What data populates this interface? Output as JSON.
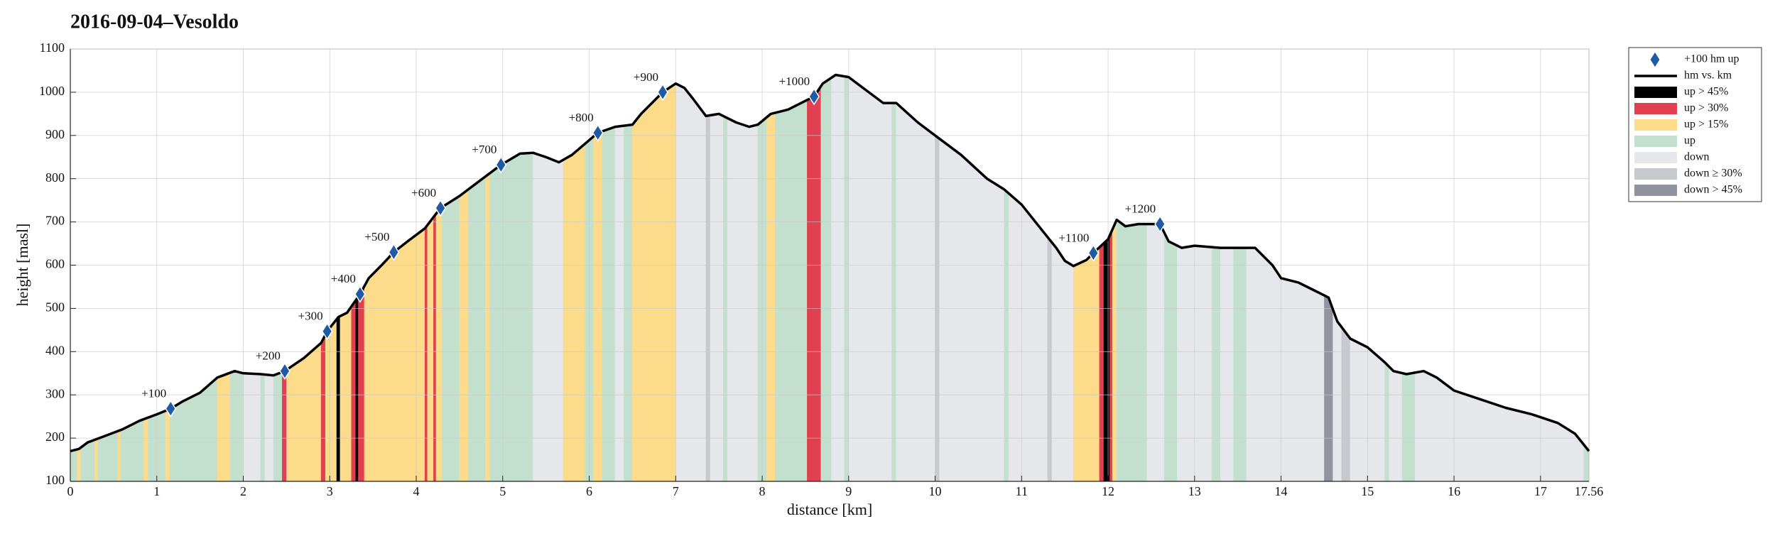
{
  "chart_data": {
    "type": "profile",
    "title": "2016-09-04–Vesoldo",
    "xlabel": "distance [km]",
    "ylabel": "height [masl]",
    "xlim": [
      0,
      17.56
    ],
    "ylim": [
      100,
      1100
    ],
    "xticks": [
      0,
      1,
      2,
      3,
      4,
      5,
      6,
      7,
      8,
      9,
      10,
      11,
      12,
      13,
      14,
      15,
      16,
      17,
      17.56
    ],
    "yticks": [
      100,
      200,
      300,
      400,
      500,
      600,
      700,
      800,
      900,
      1000,
      1100
    ],
    "grid": true,
    "legend": "outside upper right",
    "markers": {
      "name": "+100 hm up",
      "color": "#1f5aa6",
      "x": [
        1.16,
        2.48,
        2.97,
        3.35,
        3.74,
        4.28,
        4.98,
        6.1,
        6.85,
        8.6,
        11.83,
        12.6
      ],
      "values": [
        268,
        355,
        447,
        533,
        630,
        732,
        832,
        906,
        1000,
        990,
        628,
        695
      ],
      "labels": [
        "+100",
        "+200",
        "+300",
        "+400",
        "+500",
        "+600",
        "+700",
        "+800",
        "+900",
        "+1000",
        "+1100",
        "+1200"
      ]
    },
    "series": [
      {
        "name": "hm vs. km",
        "color": "#000000",
        "x": [
          0,
          0.1,
          0.2,
          0.4,
          0.6,
          0.8,
          1.0,
          1.16,
          1.3,
          1.5,
          1.7,
          1.9,
          2.0,
          2.2,
          2.35,
          2.48,
          2.7,
          2.9,
          2.97,
          3.1,
          3.2,
          3.35,
          3.45,
          3.6,
          3.74,
          3.9,
          4.1,
          4.28,
          4.5,
          4.7,
          4.98,
          5.2,
          5.35,
          5.5,
          5.65,
          5.8,
          6.1,
          6.3,
          6.5,
          6.6,
          6.85,
          7.0,
          7.1,
          7.2,
          7.35,
          7.5,
          7.7,
          7.85,
          7.95,
          8.1,
          8.3,
          8.5,
          8.6,
          8.7,
          8.85,
          9.0,
          9.2,
          9.4,
          9.55,
          9.8,
          10.0,
          10.3,
          10.6,
          10.8,
          11.0,
          11.2,
          11.4,
          11.5,
          11.6,
          11.75,
          11.83,
          12.0,
          12.1,
          12.2,
          12.35,
          12.6,
          12.7,
          12.85,
          13.0,
          13.3,
          13.5,
          13.7,
          13.9,
          14.0,
          14.2,
          14.35,
          14.5,
          14.55,
          14.65,
          14.8,
          15.0,
          15.2,
          15.3,
          15.45,
          15.65,
          15.8,
          16.0,
          16.3,
          16.6,
          16.9,
          17.2,
          17.4,
          17.56
        ],
        "values": [
          170,
          175,
          190,
          205,
          220,
          240,
          255,
          268,
          285,
          305,
          340,
          355,
          350,
          348,
          345,
          355,
          385,
          420,
          447,
          480,
          490,
          533,
          570,
          600,
          630,
          655,
          685,
          732,
          760,
          790,
          832,
          858,
          860,
          850,
          838,
          855,
          906,
          920,
          925,
          950,
          1000,
          1020,
          1010,
          985,
          945,
          950,
          930,
          920,
          925,
          950,
          960,
          980,
          990,
          1020,
          1040,
          1035,
          1005,
          975,
          975,
          930,
          900,
          855,
          800,
          775,
          740,
          690,
          640,
          610,
          598,
          612,
          628,
          660,
          705,
          690,
          695,
          695,
          655,
          640,
          645,
          640,
          640,
          640,
          600,
          570,
          560,
          545,
          530,
          525,
          470,
          430,
          410,
          375,
          355,
          348,
          355,
          340,
          310,
          290,
          270,
          255,
          235,
          210,
          170
        ]
      }
    ],
    "classes": [
      {
        "name": "up > 45%",
        "color": "#000000"
      },
      {
        "name": "up > 30%",
        "color": "#e0404f"
      },
      {
        "name": "up > 15%",
        "color": "#fcdb8a"
      },
      {
        "name": "up",
        "color": "#c3e0cf"
      },
      {
        "name": "down",
        "color": "#e6e7ea"
      },
      {
        "name": "down ≥ 30%",
        "color": "#c8c9ce"
      },
      {
        "name": "down > 45%",
        "color": "#8f949f"
      }
    ],
    "bands": [
      [
        0,
        0.08,
        3
      ],
      [
        0.08,
        0.12,
        2
      ],
      [
        0.12,
        0.28,
        3
      ],
      [
        0.28,
        0.32,
        2
      ],
      [
        0.32,
        0.55,
        3
      ],
      [
        0.55,
        0.58,
        2
      ],
      [
        0.58,
        0.85,
        3
      ],
      [
        0.85,
        0.9,
        2
      ],
      [
        0.9,
        1.1,
        3
      ],
      [
        1.1,
        1.15,
        2
      ],
      [
        1.15,
        1.7,
        3
      ],
      [
        1.7,
        1.85,
        2
      ],
      [
        1.85,
        2.0,
        3
      ],
      [
        2.0,
        2.2,
        4
      ],
      [
        2.2,
        2.25,
        3
      ],
      [
        2.25,
        2.35,
        4
      ],
      [
        2.35,
        2.45,
        3
      ],
      [
        2.45,
        2.5,
        1
      ],
      [
        2.5,
        2.9,
        2
      ],
      [
        2.9,
        2.95,
        1
      ],
      [
        2.95,
        3.08,
        2
      ],
      [
        3.08,
        3.12,
        0
      ],
      [
        3.12,
        3.25,
        2
      ],
      [
        3.25,
        3.3,
        1
      ],
      [
        3.3,
        3.33,
        0
      ],
      [
        3.33,
        3.4,
        1
      ],
      [
        3.4,
        4.1,
        2
      ],
      [
        4.1,
        4.13,
        1
      ],
      [
        4.13,
        4.2,
        2
      ],
      [
        4.2,
        4.23,
        1
      ],
      [
        4.23,
        4.3,
        2
      ],
      [
        4.3,
        4.5,
        3
      ],
      [
        4.5,
        4.6,
        2
      ],
      [
        4.6,
        4.8,
        3
      ],
      [
        4.8,
        4.85,
        2
      ],
      [
        4.85,
        5.35,
        3
      ],
      [
        5.35,
        5.7,
        4
      ],
      [
        5.7,
        5.95,
        2
      ],
      [
        5.95,
        6.05,
        3
      ],
      [
        6.05,
        6.15,
        2
      ],
      [
        6.15,
        6.3,
        3
      ],
      [
        6.3,
        6.4,
        4
      ],
      [
        6.4,
        6.5,
        3
      ],
      [
        6.5,
        7.0,
        2
      ],
      [
        7.0,
        7.35,
        4
      ],
      [
        7.35,
        7.4,
        5
      ],
      [
        7.4,
        7.55,
        4
      ],
      [
        7.55,
        7.6,
        3
      ],
      [
        7.6,
        7.95,
        4
      ],
      [
        7.95,
        8.05,
        3
      ],
      [
        8.05,
        8.15,
        2
      ],
      [
        8.15,
        8.52,
        3
      ],
      [
        8.52,
        8.68,
        1
      ],
      [
        8.68,
        8.8,
        3
      ],
      [
        8.8,
        8.95,
        4
      ],
      [
        8.95,
        9.0,
        3
      ],
      [
        9.0,
        9.5,
        4
      ],
      [
        9.5,
        9.55,
        3
      ],
      [
        9.55,
        10.0,
        4
      ],
      [
        10.0,
        10.05,
        5
      ],
      [
        10.05,
        10.8,
        4
      ],
      [
        10.8,
        10.85,
        3
      ],
      [
        10.85,
        11.3,
        4
      ],
      [
        11.3,
        11.35,
        5
      ],
      [
        11.35,
        11.6,
        4
      ],
      [
        11.6,
        11.9,
        2
      ],
      [
        11.9,
        11.95,
        1
      ],
      [
        11.95,
        12.02,
        0
      ],
      [
        12.02,
        12.05,
        1
      ],
      [
        12.05,
        12.1,
        2
      ],
      [
        12.1,
        12.45,
        3
      ],
      [
        12.45,
        12.65,
        4
      ],
      [
        12.65,
        12.8,
        3
      ],
      [
        12.8,
        13.2,
        4
      ],
      [
        13.2,
        13.3,
        3
      ],
      [
        13.3,
        13.45,
        4
      ],
      [
        13.45,
        13.6,
        3
      ],
      [
        13.6,
        14.5,
        4
      ],
      [
        14.5,
        14.6,
        6
      ],
      [
        14.6,
        14.7,
        4
      ],
      [
        14.7,
        14.8,
        5
      ],
      [
        14.8,
        15.2,
        4
      ],
      [
        15.2,
        15.25,
        3
      ],
      [
        15.25,
        15.4,
        4
      ],
      [
        15.4,
        15.55,
        3
      ],
      [
        15.55,
        17.5,
        4
      ],
      [
        17.5,
        17.56,
        3
      ]
    ]
  }
}
